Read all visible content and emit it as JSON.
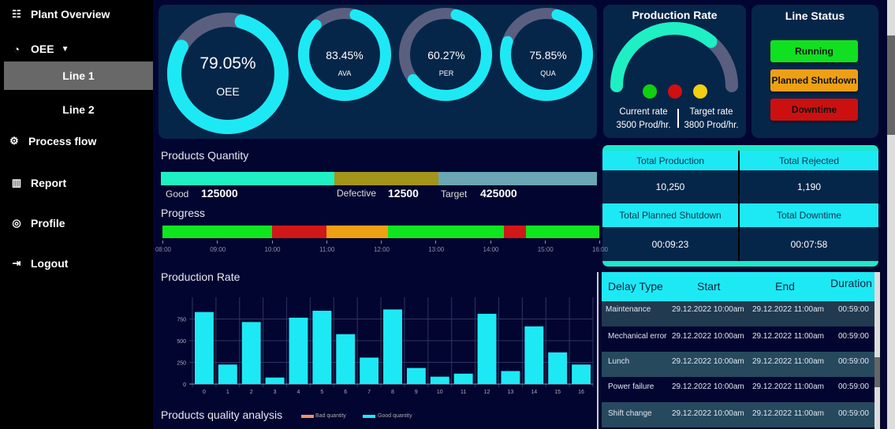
{
  "sidebar": {
    "items": [
      {
        "label": "Plant Overview",
        "icon": "grid-list-icon"
      },
      {
        "label": "OEE",
        "icon": "gauge-icon",
        "caret": "▼"
      },
      {
        "label": "Process flow",
        "icon": "gears-icon"
      },
      {
        "label": "Report",
        "icon": "chart-icon"
      },
      {
        "label": "Profile",
        "icon": "user-circle-icon"
      },
      {
        "label": "Logout",
        "icon": "logout-icon"
      }
    ],
    "sub_items": [
      {
        "label": "Line 1",
        "active": true
      },
      {
        "label": "Line 2",
        "active": false
      }
    ]
  },
  "gauges": [
    {
      "value": "79.05%",
      "label": "OEE",
      "fraction": 0.7905
    },
    {
      "value": "83.45%",
      "label": "AVA",
      "fraction": 0.8345
    },
    {
      "value": "60.27%",
      "label": "PER",
      "fraction": 0.6027
    },
    {
      "value": "75.85%",
      "label": "QUA",
      "fraction": 0.7585
    }
  ],
  "production_rate": {
    "title": "Production Rate",
    "current_label": "Current rate",
    "current_value": "3500 Prod/hr.",
    "target_label": "Target rate",
    "target_value": "3800 Prod/hr.",
    "fraction": 0.72,
    "lights": [
      "#10d010",
      "#d01010",
      "#f0d010"
    ]
  },
  "line_status": {
    "title": "Line Status",
    "buttons": [
      {
        "label": "Running",
        "color": "#10e020"
      },
      {
        "label": "Planned Shutdown",
        "color": "#eea015"
      },
      {
        "label": "Downtime",
        "color": "#cc1010"
      }
    ]
  },
  "stats": [
    {
      "label": "Total Production",
      "value": "10,250"
    },
    {
      "label": "Total Rejected",
      "value": "1,190"
    },
    {
      "label": "Total Planned Shutdown",
      "value": "00:09:23"
    },
    {
      "label": "Total Downtime",
      "value": "00:07:58"
    }
  ],
  "quantity": {
    "title": "Products Quantity",
    "good_label": "Good",
    "good": "125000",
    "defective_label": "Defective",
    "defective": "12500",
    "target_label": "Target",
    "target": "425000"
  },
  "progress": {
    "title": "Progress",
    "ticks": [
      "08:00",
      "09:00",
      "10:00",
      "11:00",
      "12:00",
      "13:00",
      "14:00",
      "15:00",
      "16:00"
    ],
    "segments": [
      {
        "from": 8,
        "to": 10,
        "color": "#10e620"
      },
      {
        "from": 10,
        "to": 11,
        "color": "#d01818"
      },
      {
        "from": 11,
        "to": 12.13,
        "color": "#eea015"
      },
      {
        "from": 12.13,
        "to": 14.25,
        "color": "#10e620"
      },
      {
        "from": 14.25,
        "to": 14.65,
        "color": "#d01818"
      },
      {
        "from": 14.65,
        "to": 16,
        "color": "#10e620"
      }
    ]
  },
  "chart_data": {
    "type": "bar",
    "title": "Production Rate",
    "categories": [
      "0",
      "1",
      "2",
      "3",
      "4",
      "5",
      "6",
      "7",
      "8",
      "9",
      "10",
      "11",
      "12",
      "13",
      "14",
      "15",
      "16"
    ],
    "values": [
      830,
      225,
      715,
      75,
      765,
      845,
      575,
      305,
      860,
      185,
      85,
      120,
      810,
      150,
      665,
      365,
      225
    ],
    "yticks": [
      "0",
      "250",
      "500",
      "750"
    ],
    "ylim": [
      0,
      1000
    ],
    "grid": true,
    "color": "#1de9f5"
  },
  "quality": {
    "title": "Products quality analysis",
    "legend": [
      {
        "label": "Bad quantity",
        "color": "#f0906a"
      },
      {
        "label": "Good quantity",
        "color": "#1de9f5"
      }
    ]
  },
  "delays": {
    "headers": [
      "Delay Type",
      "Start",
      "End",
      "Duration"
    ],
    "rows": [
      [
        "Maintenance",
        "29.12.2022 10:00am",
        "29.12.2022 11:00am",
        "00:59:00"
      ],
      [
        "Mechanical error",
        "29.12.2022 10:00am",
        "29.12.2022 11:00am",
        "00:59:00"
      ],
      [
        "Lunch",
        "29.12.2022 10:00am",
        "29.12.2022 11:00am",
        "00:59:00"
      ],
      [
        "Power failure",
        "29.12.2022 10:00am",
        "29.12.2022 11:00am",
        "00:59:00"
      ],
      [
        "Shift change",
        "29.12.2022 10:00am",
        "29.12.2022 11:00am",
        "00:59:00"
      ]
    ]
  }
}
